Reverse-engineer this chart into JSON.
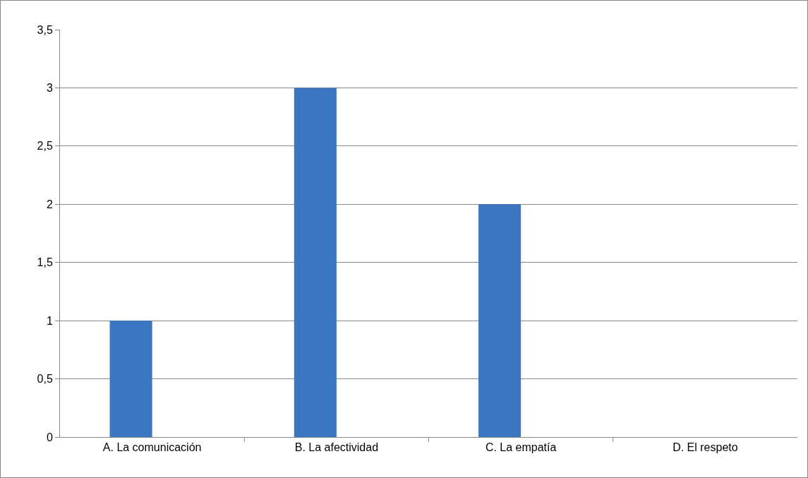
{
  "chart_data": {
    "type": "bar",
    "categories": [
      "A. La comunicación",
      "B. La afectividad",
      "C. La empatía",
      "D. El respeto"
    ],
    "values": [
      1,
      3,
      2,
      0
    ],
    "color": "#3a76c2",
    "ylim": [
      0,
      3.5
    ],
    "yticks": [
      0,
      {
        "value": 0.5,
        "label": "0,5"
      },
      1,
      {
        "value": 1.5,
        "label": "1,5"
      },
      2,
      {
        "value": 2.5,
        "label": "2,5"
      },
      3,
      {
        "value": 3.5,
        "label": "3,5"
      }
    ],
    "grid": "y"
  }
}
